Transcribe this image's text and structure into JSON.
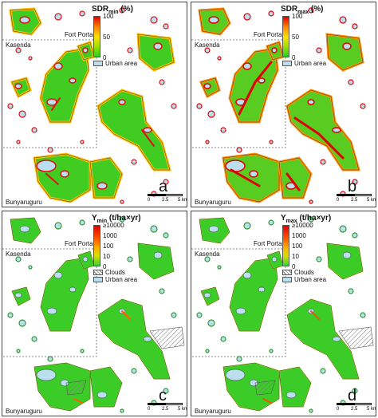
{
  "places": {
    "fort_portal": "Fort Portal",
    "kasenda": "Kasenda",
    "bunyaruguru": "Bunyaruguru"
  },
  "panels": [
    {
      "letter": "a",
      "legend_main": "SDR",
      "legend_sub": "min",
      "legend_unit": " (%)",
      "ticks": [
        "100",
        "50",
        "0"
      ],
      "swatches": [
        {
          "kind": "urban",
          "label": "Urban area"
        }
      ],
      "scale": {
        "labels": [
          "0",
          "2.5",
          "5 km"
        ]
      }
    },
    {
      "letter": "b",
      "legend_main": "SDR",
      "legend_sub": "max",
      "legend_unit": " (%)",
      "ticks": [
        "100",
        "50",
        "0"
      ],
      "swatches": [
        {
          "kind": "urban",
          "label": "Urban area"
        }
      ],
      "scale": {
        "labels": [
          "0",
          "2.5",
          "5 km"
        ]
      }
    },
    {
      "letter": "c",
      "legend_main": "Y",
      "legend_sub": "min",
      "legend_unit": " (t/ha×yr)",
      "ticks": [
        "≥10000",
        "1000",
        "100",
        "10",
        "0"
      ],
      "swatches": [
        {
          "kind": "clouds",
          "label": "Clouds"
        },
        {
          "kind": "urban",
          "label": "Urban area"
        }
      ],
      "scale": {
        "labels": [
          "0",
          "2.5",
          "5 km"
        ]
      }
    },
    {
      "letter": "d",
      "legend_main": "Y",
      "legend_sub": "max",
      "legend_unit": " (t/ha×yr)",
      "ticks": [
        "≥10000",
        "1000",
        "100",
        "10",
        "0"
      ],
      "swatches": [
        {
          "kind": "clouds",
          "label": "Clouds"
        },
        {
          "kind": "urban",
          "label": "Urban area"
        }
      ],
      "scale": {
        "labels": [
          "0",
          "2.5",
          "5 km"
        ]
      }
    }
  ],
  "colors": {
    "high": "#e00000",
    "mid": "#ffe000",
    "low": "#20d020",
    "urban": "#bcdff0",
    "lake": "#9fcbe8"
  }
}
